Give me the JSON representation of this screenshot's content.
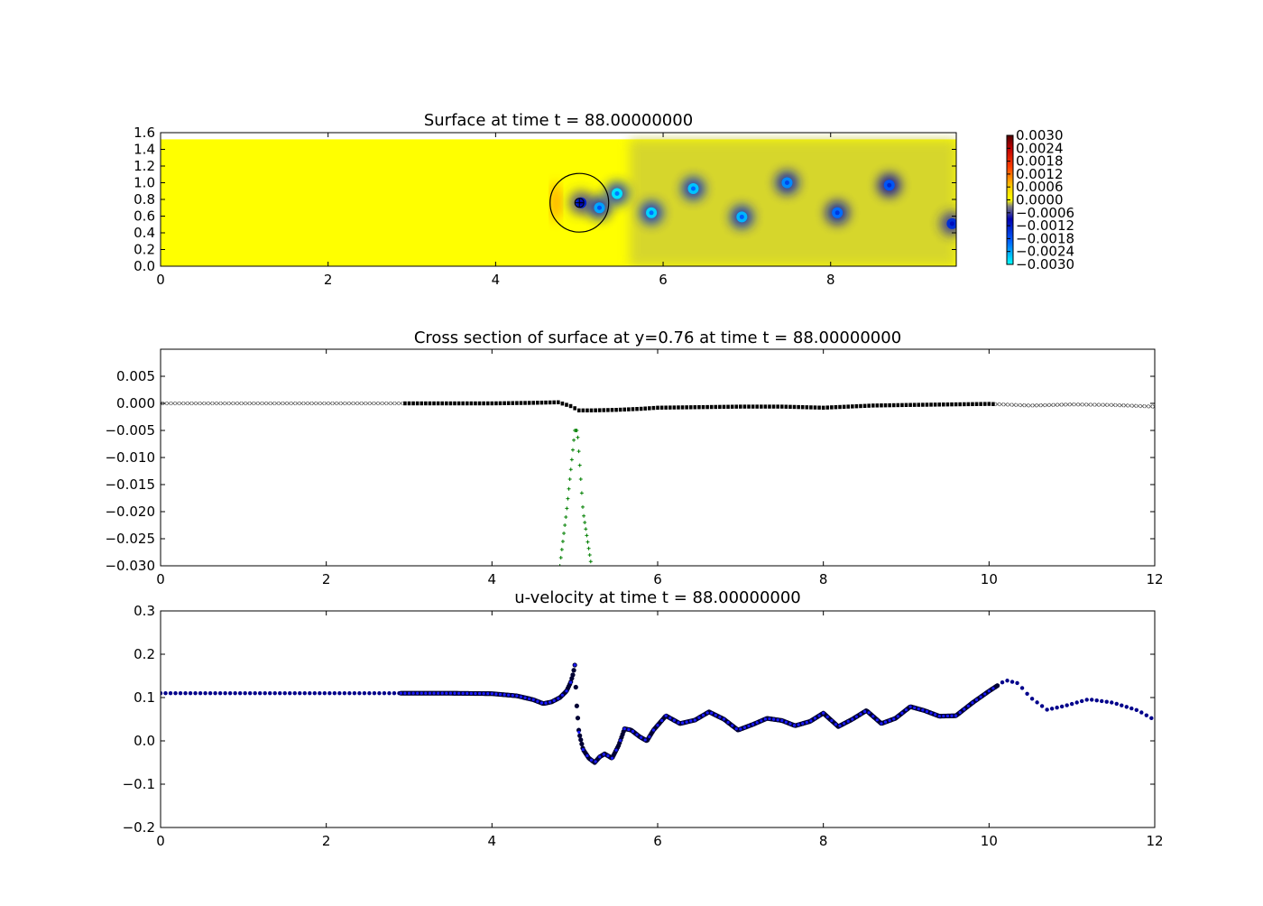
{
  "chart_data": [
    {
      "type": "heatmap",
      "title": "Surface at time t =    88.00000000",
      "xlim": [
        0,
        9.5
      ],
      "ylim": [
        0,
        1.6
      ],
      "xticks": [
        0,
        2,
        4,
        6,
        8
      ],
      "yticks": [
        0.0,
        0.2,
        0.4,
        0.6,
        0.8,
        1.0,
        1.2,
        1.4,
        1.6
      ],
      "xtick_labels": [
        "0",
        "2",
        "4",
        "6",
        "8"
      ],
      "ytick_labels": [
        "0.0",
        "0.2",
        "0.4",
        "0.6",
        "0.8",
        "1.0",
        "1.2",
        "1.4",
        "1.6"
      ],
      "domain_top": 1.52,
      "colorbar": {
        "min": -0.003,
        "max": 0.003,
        "ticks": [
          "0.0030",
          "0.0024",
          "0.0018",
          "0.0012",
          "0.0006",
          "0.0000",
          "−0.0006",
          "−0.0012",
          "−0.0018",
          "−0.0024",
          "−0.0030"
        ]
      },
      "obstacle": {
        "cx": 5.0,
        "cy": 0.76,
        "r": 0.35
      },
      "vortices": [
        {
          "x": 5.02,
          "y": 0.76,
          "v": -0.0012
        },
        {
          "x": 5.24,
          "y": 0.7,
          "v": -0.0024
        },
        {
          "x": 5.45,
          "y": 0.87,
          "v": -0.0028
        },
        {
          "x": 5.86,
          "y": 0.64,
          "v": -0.0027
        },
        {
          "x": 6.36,
          "y": 0.93,
          "v": -0.0026
        },
        {
          "x": 6.94,
          "y": 0.59,
          "v": -0.0025
        },
        {
          "x": 7.48,
          "y": 1.0,
          "v": -0.0022
        },
        {
          "x": 8.08,
          "y": 0.64,
          "v": -0.002
        },
        {
          "x": 8.7,
          "y": 0.97,
          "v": -0.0018
        },
        {
          "x": 9.45,
          "y": 0.51,
          "v": -0.0014
        }
      ]
    },
    {
      "type": "line",
      "title": "Cross section of surface at y=0.76 at time t =    88.00000000",
      "xlim": [
        0,
        12
      ],
      "ylim": [
        -0.03,
        0.01
      ],
      "xticks": [
        0,
        2,
        4,
        6,
        8,
        10,
        12
      ],
      "yticks": [
        0.005,
        0.0,
        -0.005,
        -0.01,
        -0.015,
        -0.02,
        -0.025,
        -0.03
      ],
      "xtick_labels": [
        "0",
        "2",
        "4",
        "6",
        "8",
        "10",
        "12"
      ],
      "ytick_labels": [
        "0.005",
        "0.000",
        "−0.005",
        "−0.010",
        "−0.015",
        "−0.020",
        "−0.025",
        "−0.030"
      ],
      "series": [
        {
          "marker": "x",
          "color": "#000000",
          "fine_range": [
            2.9,
            10.1
          ],
          "x": [
            0,
            1,
            2,
            2.9,
            3.5,
            4.0,
            4.5,
            4.8,
            4.95,
            5.05,
            5.2,
            5.5,
            5.8,
            6.0,
            6.5,
            7.0,
            7.5,
            8.0,
            8.3,
            8.6,
            9.0,
            9.5,
            10.0,
            10.5,
            11.0,
            11.5,
            12.0
          ],
          "y": [
            0.0,
            0.0,
            0.0,
            0.0,
            0.0,
            0.0,
            0.0001,
            0.0002,
            -0.0005,
            -0.0013,
            -0.0013,
            -0.0012,
            -0.001,
            -0.0008,
            -0.0007,
            -0.0006,
            -0.0006,
            -0.0008,
            -0.0006,
            -0.0004,
            -0.0003,
            -0.0002,
            -0.0001,
            -0.0004,
            -0.0002,
            -0.0003,
            -0.0006
          ]
        },
        {
          "marker": "+",
          "color": "#007f00",
          "x": [
            4.82,
            4.9,
            5.0,
            5.03,
            5.1,
            5.2
          ],
          "y": [
            -0.03,
            -0.02,
            -0.005,
            -0.005,
            -0.02,
            -0.03
          ]
        }
      ]
    },
    {
      "type": "scatter",
      "title": "u-velocity at time t =    88.00000000",
      "xlim": [
        0,
        12
      ],
      "ylim": [
        -0.2,
        0.3
      ],
      "xticks": [
        0,
        2,
        4,
        6,
        8,
        10,
        12
      ],
      "yticks": [
        0.3,
        0.2,
        0.1,
        0.0,
        -0.1,
        -0.2
      ],
      "xtick_labels": [
        "0",
        "2",
        "4",
        "6",
        "8",
        "10",
        "12"
      ],
      "ytick_labels": [
        "0.3",
        "0.2",
        "0.1",
        "0.0",
        "−0.1",
        "−0.2"
      ],
      "fine_range": [
        2.9,
        10.1
      ],
      "series": [
        {
          "marker": "o",
          "color": "#00008b",
          "x": [
            0,
            1,
            2,
            3,
            3.5,
            4.0,
            4.3,
            4.5,
            4.62,
            4.72,
            4.82,
            4.9,
            4.95,
            4.98,
            5.0,
            5.02,
            5.05,
            5.1,
            5.17,
            5.24,
            5.3,
            5.36,
            5.45,
            5.53,
            5.6,
            5.68,
            5.78,
            5.87,
            5.95,
            6.1,
            6.27,
            6.45,
            6.62,
            6.8,
            6.97,
            7.15,
            7.32,
            7.5,
            7.66,
            7.84,
            8.0,
            8.18,
            8.35,
            8.52,
            8.7,
            8.87,
            9.05,
            9.22,
            9.4,
            9.6,
            9.8,
            10.0,
            10.2,
            10.35,
            10.5,
            10.7,
            10.9,
            11.2,
            11.5,
            11.8,
            12.0
          ],
          "y": [
            0.11,
            0.11,
            0.11,
            0.11,
            0.11,
            0.109,
            0.104,
            0.095,
            0.086,
            0.09,
            0.1,
            0.115,
            0.135,
            0.155,
            0.175,
            0.09,
            0.02,
            -0.02,
            -0.04,
            -0.05,
            -0.037,
            -0.03,
            -0.04,
            -0.01,
            0.028,
            0.025,
            0.01,
            0.0,
            0.025,
            0.058,
            0.04,
            0.048,
            0.067,
            0.05,
            0.025,
            0.038,
            0.052,
            0.047,
            0.035,
            0.045,
            0.064,
            0.033,
            0.05,
            0.07,
            0.04,
            0.052,
            0.079,
            0.07,
            0.057,
            0.058,
            0.088,
            0.115,
            0.14,
            0.133,
            0.1,
            0.072,
            0.08,
            0.096,
            0.088,
            0.07,
            0.048
          ]
        }
      ]
    }
  ]
}
